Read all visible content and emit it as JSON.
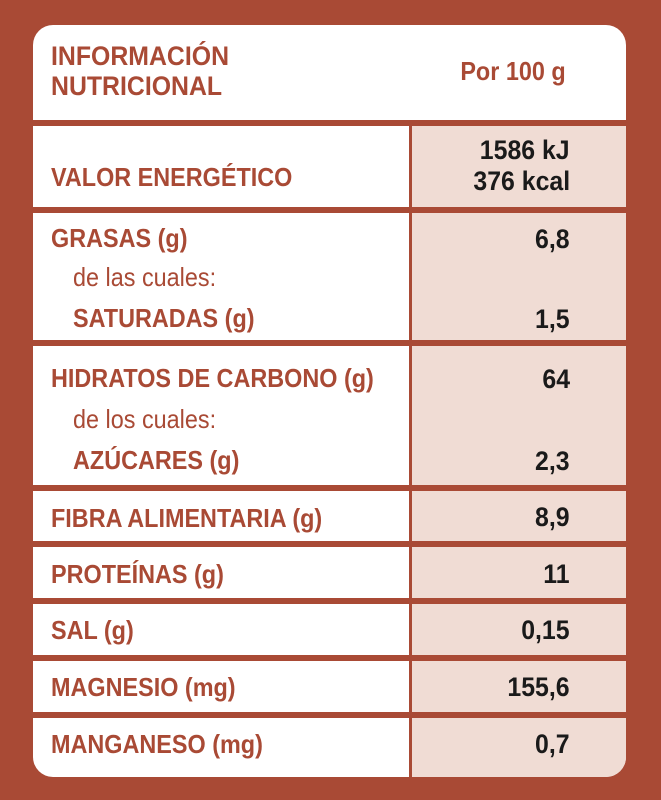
{
  "colors": {
    "accent": "#a94a35",
    "value_bg": "#f0dcd4",
    "value_text": "#1a1a1a"
  },
  "header": {
    "title_line1": "INFORMACIÓN",
    "title_line2": "NUTRICIONAL",
    "per": "Por 100 g"
  },
  "rows": {
    "energy": {
      "label": "VALOR ENERGÉTICO",
      "value_kj": "1586 kJ",
      "value_kcal": "376 kcal"
    },
    "fat": {
      "label": "GRASAS (g)",
      "sub_intro": "de las cuales:",
      "sub_label": "SATURADAS (g)",
      "value": "6,8",
      "sub_value": "1,5"
    },
    "carbs": {
      "label": "HIDRATOS DE CARBONO (g)",
      "sub_intro": "de los cuales:",
      "sub_label": "AZÚCARES (g)",
      "value": "64",
      "sub_value": "2,3"
    },
    "fiber": {
      "label": "FIBRA ALIMENTARIA (g)",
      "value": "8,9"
    },
    "protein": {
      "label": "PROTEÍNAS (g)",
      "value": "11"
    },
    "salt": {
      "label": "SAL (g)",
      "value": "0,15"
    },
    "magnesium": {
      "label": "MAGNESIO (mg)",
      "value": "155,6"
    },
    "manganese": {
      "label": "MANGANESO (mg)",
      "value": "0,7"
    }
  }
}
